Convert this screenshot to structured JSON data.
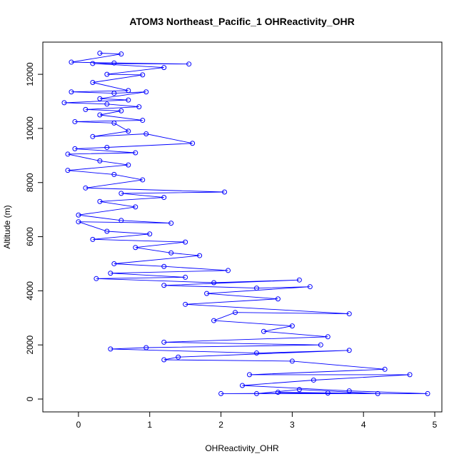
{
  "chart_data": {
    "type": "line",
    "title": "ATOM3 Northeast_Pacific_1 OHReactivity_OHR",
    "x_label": "OHReactivity_OHR",
    "y_label": "Altitude (m)",
    "xlim": [
      -0.5,
      5.1
    ],
    "ylim": [
      -475,
      13190
    ],
    "xticks": [
      0,
      1,
      2,
      3,
      4,
      5
    ],
    "yticks": [
      0,
      2000,
      4000,
      6000,
      8000,
      10000,
      12000
    ],
    "marker": "circle",
    "x": [
      0.3,
      0.6,
      -0.1,
      0.5,
      1.55,
      0.2,
      1.2,
      0.4,
      0.9,
      0.2,
      0.7,
      -0.1,
      0.5,
      0.95,
      0.3,
      0.7,
      -0.2,
      0.4,
      0.85,
      0.1,
      0.6,
      0.3,
      0.9,
      -0.05,
      0.5,
      0.7,
      0.2,
      0.95,
      1.6,
      0.4,
      -0.05,
      0.8,
      -0.15,
      0.3,
      0.7,
      -0.15,
      0.5,
      0.9,
      0.1,
      2.05,
      0.6,
      1.2,
      0.3,
      0.8,
      0.0,
      0.6,
      1.3,
      0.0,
      0.4,
      1.0,
      0.2,
      1.5,
      0.8,
      1.3,
      1.7,
      0.5,
      1.2,
      2.1,
      0.45,
      1.5,
      0.25,
      1.9,
      3.1,
      1.2,
      2.5,
      3.25,
      1.8,
      2.8,
      1.5,
      3.8,
      2.2,
      1.9,
      3.0,
      2.6,
      3.5,
      1.2,
      3.4,
      0.95,
      0.45,
      2.5,
      3.8,
      1.4,
      1.2,
      3.0,
      4.3,
      2.4,
      4.65,
      3.3,
      2.3,
      3.8,
      4.9,
      2.0,
      3.5,
      2.8,
      4.2,
      3.1,
      2.5
    ],
    "series": [
      {
        "color": "#0000ff",
        "values": [
          12780,
          12750,
          12450,
          12420,
          12380,
          12400,
          12250,
          12000,
          11980,
          11700,
          11400,
          11350,
          11300,
          11350,
          11100,
          11050,
          10950,
          10900,
          10800,
          10700,
          10650,
          10500,
          10300,
          10250,
          10200,
          9900,
          9700,
          9800,
          9450,
          9300,
          9250,
          9100,
          9050,
          8800,
          8650,
          8450,
          8300,
          8100,
          7800,
          7650,
          7600,
          7450,
          7300,
          7100,
          6800,
          6600,
          6500,
          6550,
          6200,
          6100,
          5900,
          5800,
          5600,
          5400,
          5300,
          5000,
          4900,
          4750,
          4650,
          4500,
          4450,
          4300,
          4400,
          4200,
          4100,
          4150,
          3900,
          3700,
          3500,
          3150,
          3200,
          2900,
          2700,
          2500,
          2300,
          2100,
          2000,
          1900,
          1850,
          1700,
          1800,
          1550,
          1450,
          1400,
          1100,
          900,
          900,
          700,
          500,
          300,
          200,
          200,
          220,
          250,
          200,
          350,
          200
        ]
      }
    ]
  }
}
